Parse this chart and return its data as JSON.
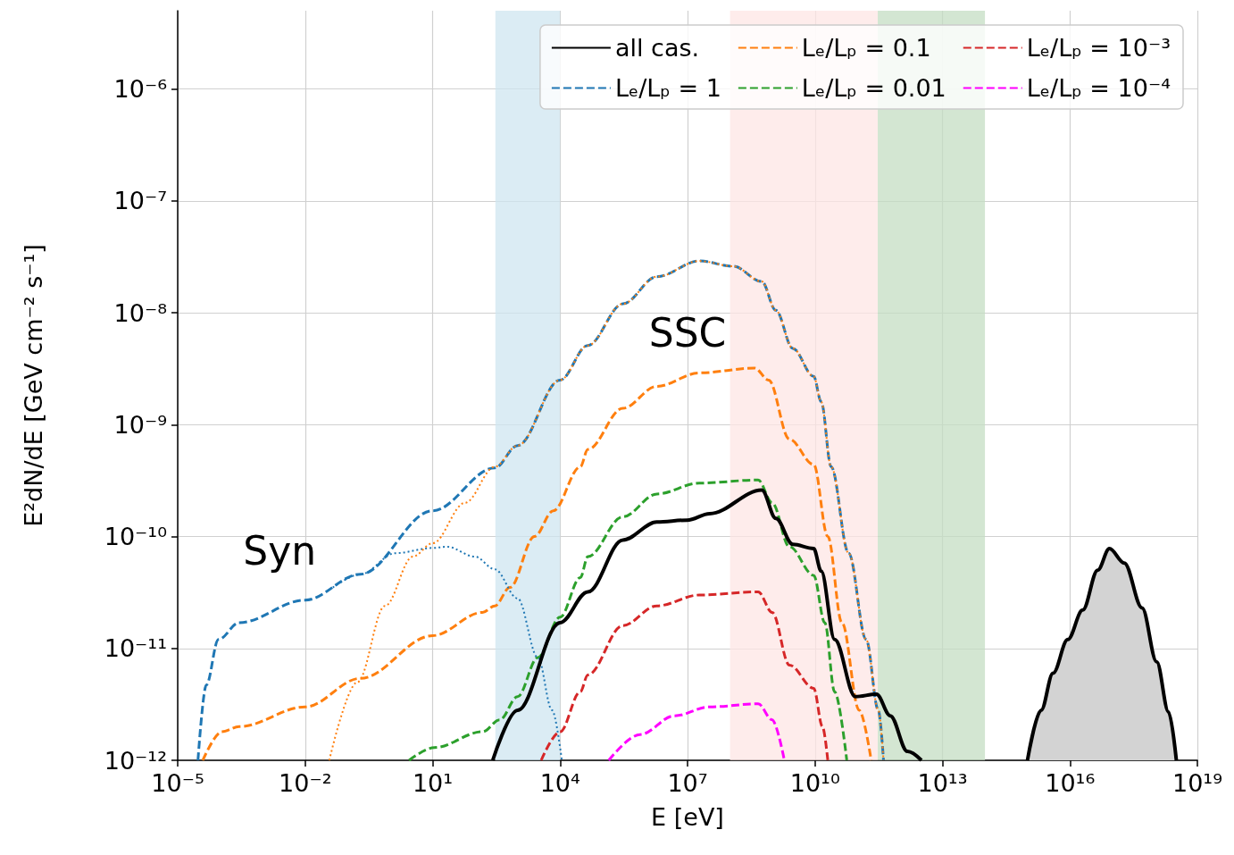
{
  "chart_data": {
    "type": "line",
    "xlabel": "E [eV]",
    "ylabel": "E²dN/dE [GeV cm⁻² s⁻¹]",
    "log": "xy",
    "grid": true,
    "legend": "top right",
    "marker": "none",
    "xlim": [
      1e-05,
      1e+19
    ],
    "xticks": [
      {
        "value": 1e-05,
        "label": "10⁻⁵"
      },
      {
        "value": 0.01,
        "label": "10⁻²"
      },
      {
        "value": 10,
        "label": "10¹"
      },
      {
        "value": 10000.0,
        "label": "10⁴"
      },
      {
        "value": 10000000.0,
        "label": "10⁷"
      },
      {
        "value": 10000000000.0,
        "label": "10¹⁰"
      },
      {
        "value": 10000000000000.0,
        "label": "10¹³"
      },
      {
        "value": 1e+16,
        "label": "10¹⁶"
      },
      {
        "value": 1e+19,
        "label": "10¹⁹"
      }
    ],
    "ylim": [
      1e-12,
      5e-06
    ],
    "yticks": [
      {
        "value": 1e-12,
        "label": "10⁻¹²"
      },
      {
        "value": 1e-11,
        "label": "10⁻¹¹"
      },
      {
        "value": 1e-10,
        "label": "10⁻¹⁰"
      },
      {
        "value": 1e-09,
        "label": "10⁻⁹"
      },
      {
        "value": 1e-08,
        "label": "10⁻⁸"
      },
      {
        "value": 1e-07,
        "label": "10⁻⁷"
      },
      {
        "value": 1e-06,
        "label": "10⁻⁶"
      }
    ],
    "bands": [
      {
        "axis": "x",
        "from": 300,
        "to": 10000.0,
        "color": "#cfe6f0"
      },
      {
        "axis": "x",
        "from": 100000000.0,
        "to": 300000000000.0,
        "color": "#fde6e4"
      },
      {
        "axis": "x",
        "from": 300000000000.0,
        "to": 100000000000000.0,
        "color": "#c4ddc3"
      }
    ],
    "annotations": [
      "Syn",
      "SSC"
    ],
    "series": [
      {
        "name": "all cas.",
        "color": "#000000",
        "line_style": "solid",
        "x": [
          260,
          1000,
          10000.0,
          45000.0,
          300000.0,
          1900000.0,
          9800000.0,
          33000000.0,
          560000000.0,
          1200000000.0,
          3000000000.0,
          9300000000.0,
          14000000000.0,
          29000000000.0,
          89000000000.0,
          280000000000.0,
          590000000000.0,
          1500000000000.0,
          3200000000000.0
        ],
        "values": [
          1e-12,
          2.8e-12,
          1.7e-11,
          3.2e-11,
          9.3e-11,
          1.35e-10,
          1.4e-10,
          1.6e-10,
          2.6e-10,
          1.45e-10,
          8.5e-11,
          7.8e-11,
          4.9e-11,
          1.2e-11,
          3.7e-12,
          3.9e-12,
          2.5e-12,
          1.2e-12,
          1e-12
        ]
      },
      {
        "name": "Lₑ/Lₚ = 1",
        "color": "#1f77b4",
        "line_style": "dashed",
        "x": [
          3e-05,
          4.7e-05,
          9.1e-05,
          0.00028,
          0.01,
          0.2,
          10,
          290,
          1000,
          10000.0,
          45000.0,
          300000.0,
          1900000.0,
          19000000.0,
          120000000.0,
          560000000.0,
          1200000000.0,
          3000000000.0,
          9300000000.0,
          14000000000.0,
          24000000000.0,
          62000000000.0,
          160000000000.0,
          310000000000.0,
          410000000000.0
        ],
        "values": [
          1e-12,
          4.7e-12,
          1.2e-11,
          1.7e-11,
          2.7e-11,
          4.6e-11,
          1.7e-10,
          4.1e-10,
          6.5e-10,
          2.5e-09,
          5.1e-09,
          1.2e-08,
          2.1e-08,
          2.9e-08,
          2.6e-08,
          1.9e-08,
          1.05e-08,
          4.8e-09,
          2.7e-09,
          1.6e-09,
          4.2e-10,
          7.1e-11,
          1.2e-11,
          2.8e-12,
          1e-12
        ]
      },
      {
        "name": "Lₑ/Lₚ = 0.1",
        "color": "#ff7f0e",
        "line_style": "dashed",
        "x": [
          3.9e-05,
          0.00011,
          0.00028,
          0.01,
          0.2,
          10,
          150,
          290,
          660,
          2500,
          6900,
          30000.0,
          45000.0,
          300000.0,
          1900000.0,
          19000000.0,
          380000000.0,
          810000000.0,
          2500000000.0,
          9300000000.0,
          20000000000.0,
          43000000000.0,
          110000000000.0,
          210000000000.0
        ],
        "values": [
          1e-12,
          1.8e-12,
          2e-12,
          3e-12,
          5.4e-12,
          1.3e-11,
          2.1e-11,
          2.4e-11,
          3.5e-11,
          1e-10,
          1.7e-10,
          4.2e-10,
          6e-10,
          1.4e-09,
          2.2e-09,
          2.9e-09,
          3.2e-09,
          2.5e-09,
          7.4e-10,
          4.4e-10,
          1e-10,
          1.7e-11,
          2.8e-12,
          1e-12
        ]
      },
      {
        "name": "Lₑ/Lₚ = 0.01",
        "color": "#2ca02c",
        "line_style": "dashed",
        "x": [
          2.8,
          11,
          150,
          380,
          1000,
          3000,
          10000.0,
          30000.0,
          45000.0,
          300000.0,
          1900000.0,
          19000000.0,
          460000000.0,
          980000000.0,
          2500000000.0,
          9300000000.0,
          17000000000.0,
          29000000000.0,
          56000000000.0
        ],
        "values": [
          1e-12,
          1.3e-12,
          1.8e-12,
          2.3e-12,
          3.7e-12,
          8.3e-12,
          1.9e-11,
          4.3e-11,
          6.6e-11,
          1.5e-10,
          2.4e-10,
          3e-10,
          3.2e-10,
          2e-10,
          8.1e-11,
          4.5e-11,
          1.7e-11,
          4.1e-12,
          1e-12
        ]
      },
      {
        "name": "Lₑ/Lₚ = 10⁻³",
        "color": "#d62728",
        "line_style": "dashed",
        "x": [
          3600,
          10000.0,
          30000.0,
          45000.0,
          300000.0,
          1900000.0,
          19000000.0,
          460000000.0,
          980000000.0,
          2500000000.0,
          9300000000.0,
          15000000000.0,
          20000000000.0
        ],
        "values": [
          1e-12,
          1.8e-12,
          4.1e-12,
          5.8e-12,
          1.6e-11,
          2.4e-11,
          3e-11,
          3.2e-11,
          2.1e-11,
          7.1e-12,
          4.4e-12,
          2e-12,
          1e-12
        ]
      },
      {
        "name": "Lₑ/Lₚ = 10⁻⁴",
        "color": "#ff00ff",
        "line_style": "dashed",
        "x": [
          140000.0,
          760000.0,
          5000000.0,
          33000000.0,
          460000000.0,
          980000000.0,
          1900000000.0
        ],
        "values": [
          1e-12,
          1.7e-12,
          2.5e-12,
          3e-12,
          3.2e-12,
          2.3e-12,
          1e-12
        ]
      },
      {
        "color": "#1f77b4",
        "line_style": "dotted",
        "x": [
          0.045,
          0.2,
          1.35,
          10,
          22,
          100,
          290,
          1000,
          3000,
          6500,
          11000.0
        ],
        "values": [
          3.5e-11,
          4.6e-11,
          7.1e-11,
          7.9e-11,
          8.1e-11,
          6.6e-11,
          5.1e-11,
          2.8e-11,
          8.3e-12,
          2.8e-12,
          1e-12
        ]
      },
      {
        "color": "#ff7f0e",
        "line_style": "dotted",
        "x": [
          0.037,
          0.17,
          0.76,
          3.4,
          10,
          58,
          290,
          1000,
          10000.0,
          45000.0,
          300000.0,
          1900000.0,
          19000000.0,
          120000000.0,
          560000000.0,
          1200000000.0,
          3000000000.0,
          9300000000.0,
          14000000000.0,
          24000000000.0,
          62000000000.0,
          160000000000.0,
          310000000000.0,
          410000000000.0
        ],
        "values": [
          1e-12,
          5e-12,
          2.4e-11,
          6.6e-11,
          8.7e-11,
          2e-10,
          4.2e-10,
          6.5e-10,
          2.5e-09,
          5.1e-09,
          1.2e-08,
          2.1e-08,
          2.9e-08,
          2.6e-08,
          1.9e-08,
          1.05e-08,
          4.8e-09,
          2.7e-09,
          1.6e-09,
          4.2e-10,
          7.1e-11,
          1.2e-11,
          2.8e-12,
          1e-12
        ]
      },
      {
        "type": "area",
        "color": "#000000",
        "line_style": "solid",
        "x": [
          1000000000000000.0,
          2100000000000000.0,
          4000000000000000.0,
          8900000000000000.0,
          2e+16,
          4.5e+16,
          8.5e+16,
          1.9e+17,
          5e+17,
          1.1e+18,
          2.1e+18,
          3.2e+18
        ],
        "values": [
          1e-12,
          2.8e-12,
          6e-12,
          1.2e-11,
          2.2e-11,
          5e-11,
          7.8e-11,
          5.8e-11,
          2.3e-11,
          7.6e-12,
          2.7e-12,
          1e-12
        ]
      }
    ]
  }
}
